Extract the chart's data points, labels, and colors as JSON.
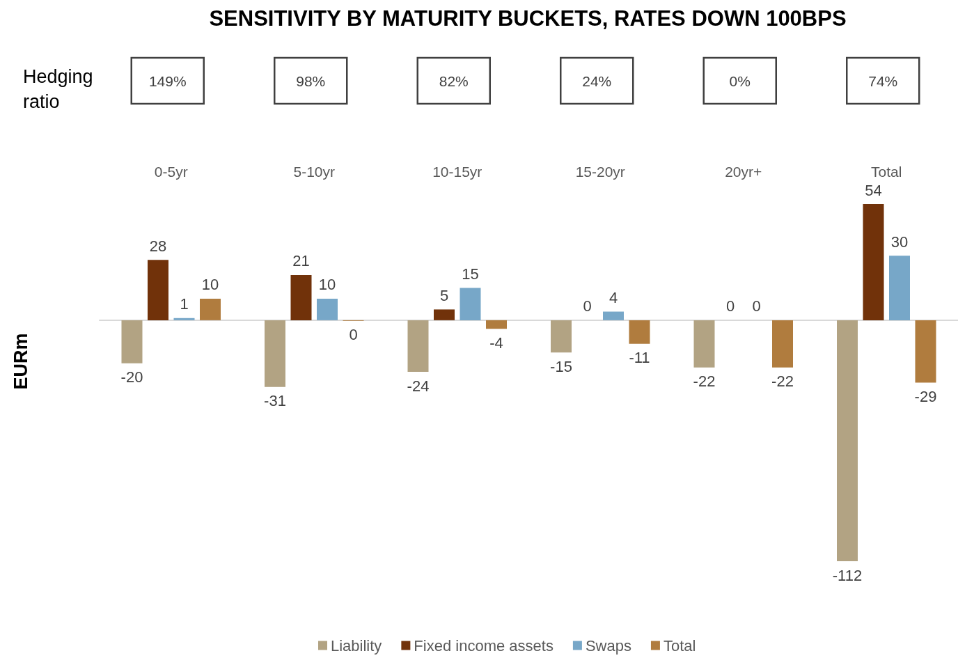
{
  "chart_data": {
    "type": "bar",
    "title": "SENSITIVITY BY MATURITY BUCKETS, RATES DOWN 100BPS",
    "ylabel": "EURm",
    "categories": [
      "0-5yr",
      "5-10yr",
      "10-15yr",
      "15-20yr",
      "20yr+",
      "Total"
    ],
    "series": [
      {
        "name": "Liability",
        "color": "#b2a383",
        "values": [
          -20,
          -31,
          -24,
          -15,
          -22,
          -112
        ]
      },
      {
        "name": "Fixed income assets",
        "color": "#71320a",
        "values": [
          28,
          21,
          5,
          0,
          0,
          54
        ]
      },
      {
        "name": "Swaps",
        "color": "#77a7c8",
        "values": [
          1,
          10,
          15,
          4,
          0,
          30
        ]
      },
      {
        "name": "Total",
        "color": "#b07c3e",
        "values": [
          10,
          -0.3,
          -4,
          -11,
          -22,
          -29
        ],
        "value_labels": [
          "10",
          "0",
          "-4",
          "-11",
          "-22",
          "-29"
        ]
      }
    ],
    "annotations": [
      "Hedging ratio",
      "149%",
      "98%",
      "82%",
      "24%",
      "0%",
      "74%"
    ],
    "data_labels": true,
    "tick_labels": "x",
    "legend": "bottom"
  }
}
